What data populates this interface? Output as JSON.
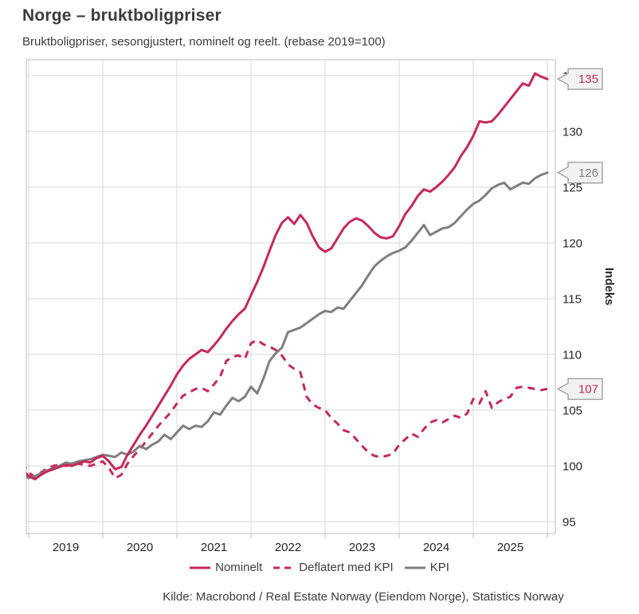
{
  "header": {
    "title": "Norge – bruktboligpriser",
    "subtitle": "Bruktboligpriser, sesongjustert, nominelt og reelt. (rebase 2019=100)"
  },
  "source": "Kilde: Macrobond / Real Estate Norway (Eiendom Norge), Statistics Norway",
  "colors": {
    "nominelt": "#C7295A",
    "kpi_gray": "#7F7F7F",
    "grid": "#DADADA",
    "frame": "#BDBDBD",
    "tick_text": "#262626",
    "heading_text": "#3C3C3C",
    "callout_bg": "#F2F2F2",
    "callout_border": "#A0A0A0"
  },
  "chart_data": {
    "type": "line",
    "title": "Norge – bruktboligpriser",
    "subtitle": "Bruktboligpriser, sesongjustert, nominelt og reelt. (rebase 2019=100)",
    "frequency": "monthly",
    "x_monthly_start": "2018-12",
    "x_monthly_end": "2026-01",
    "x_tick_labels": [
      "2019",
      "2020",
      "2021",
      "2022",
      "2023",
      "2024",
      "2025"
    ],
    "y_ticks": [
      95,
      100,
      105,
      110,
      115,
      120,
      125,
      130,
      135
    ],
    "y_axis_title": "Indeks",
    "y_axis_side": "right",
    "ylim": [
      93.9,
      136.4
    ],
    "grid": true,
    "legend_position": "bottom",
    "series": [
      {
        "name": "Nominelt",
        "style": "solid",
        "color": "#C7295A",
        "last_value_label": "135",
        "values": [
          99.6,
          99.1,
          98.8,
          99.2,
          99.5,
          99.7,
          99.9,
          100.1,
          100.0,
          100.2,
          100.4,
          100.3,
          100.7,
          100.9,
          100.4,
          99.7,
          99.9,
          101.0,
          101.9,
          102.8,
          103.6,
          104.5,
          105.4,
          106.3,
          107.2,
          108.2,
          109.0,
          109.6,
          110.0,
          110.4,
          110.2,
          110.8,
          111.5,
          112.3,
          113.0,
          113.6,
          114.1,
          115.3,
          116.5,
          117.8,
          119.3,
          120.7,
          121.8,
          122.3,
          121.7,
          122.5,
          121.8,
          120.6,
          119.6,
          119.2,
          119.5,
          120.4,
          121.3,
          121.9,
          122.2,
          122.0,
          121.5,
          120.9,
          120.5,
          120.4,
          120.6,
          121.5,
          122.6,
          123.3,
          124.2,
          124.8,
          124.6,
          125.0,
          125.5,
          126.1,
          126.8,
          127.8,
          128.6,
          129.6,
          130.9,
          130.8,
          130.9,
          131.5,
          132.2,
          132.9,
          133.6,
          134.3,
          134.1,
          135.2,
          134.9,
          134.7
        ]
      },
      {
        "name": "Deflatert med KPI",
        "style": "dashed",
        "color": "#C7295A",
        "last_value_label": "107",
        "values": [
          100.3,
          99.4,
          99.0,
          99.4,
          99.8,
          100.0,
          100.1,
          100.0,
          100.1,
          100.2,
          100.1,
          100.0,
          100.2,
          100.4,
          99.8,
          98.9,
          99.2,
          100.2,
          100.9,
          101.5,
          102.2,
          102.9,
          103.6,
          104.2,
          104.8,
          105.6,
          106.3,
          106.6,
          106.9,
          107.0,
          106.7,
          107.3,
          108.0,
          109.4,
          109.8,
          109.9,
          109.6,
          111.0,
          111.3,
          110.9,
          110.7,
          110.4,
          109.9,
          109.1,
          108.7,
          108.4,
          106.2,
          105.5,
          105.2,
          105.0,
          104.3,
          103.8,
          103.2,
          103.0,
          102.4,
          101.8,
          101.2,
          100.9,
          100.8,
          100.9,
          101.1,
          101.9,
          102.4,
          102.9,
          102.6,
          103.3,
          103.9,
          104.1,
          103.9,
          104.2,
          104.5,
          104.3,
          104.7,
          106.0,
          105.6,
          106.7,
          105.2,
          105.7,
          106.0,
          106.2,
          107.0,
          107.1,
          107.0,
          106.9,
          106.8,
          106.9
        ]
      },
      {
        "name": "KPI",
        "style": "solid",
        "color": "#7F7F7F",
        "last_value_label": "126",
        "values": [
          99.3,
          98.9,
          99.1,
          99.3,
          99.6,
          99.8,
          100.0,
          100.3,
          100.2,
          100.4,
          100.5,
          100.6,
          100.8,
          101.0,
          100.9,
          100.8,
          101.2,
          101.0,
          101.3,
          101.8,
          101.5,
          101.9,
          102.2,
          102.8,
          102.4,
          103.0,
          103.6,
          103.3,
          103.6,
          103.5,
          104.0,
          104.8,
          104.6,
          105.4,
          106.1,
          105.8,
          106.2,
          107.1,
          106.5,
          107.8,
          109.4,
          110.1,
          110.6,
          112.0,
          112.2,
          112.4,
          112.8,
          113.2,
          113.6,
          113.9,
          113.8,
          114.2,
          114.1,
          114.8,
          115.5,
          116.2,
          117.1,
          117.9,
          118.4,
          118.8,
          119.1,
          119.3,
          119.6,
          120.2,
          120.9,
          121.6,
          120.7,
          121.0,
          121.3,
          121.4,
          121.8,
          122.4,
          123.0,
          123.5,
          123.8,
          124.3,
          124.9,
          125.2,
          125.4,
          124.8,
          125.1,
          125.4,
          125.3,
          125.8,
          126.1,
          126.3
        ]
      }
    ]
  }
}
